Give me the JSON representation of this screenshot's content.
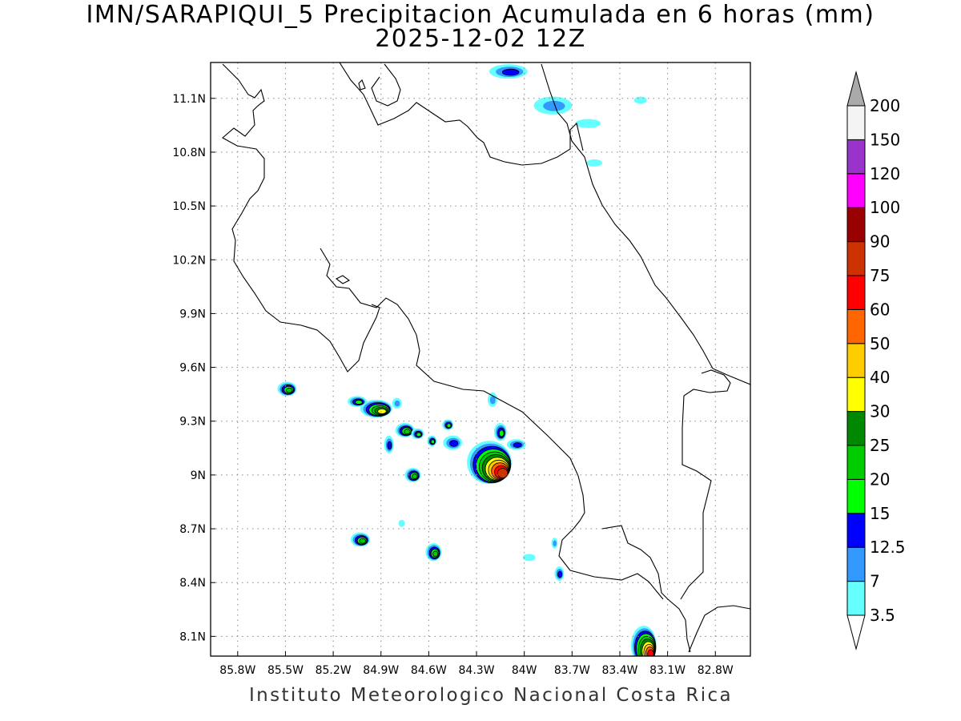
{
  "title": {
    "line1": "IMN/SARAPIQUI_5 Precipitacion Acumulada en 6 horas (mm)",
    "line2": "2025-12-02 12Z"
  },
  "footer": "Instituto Meteorologico Nacional Costa Rica",
  "map": {
    "lon_range": [
      -85.97,
      -82.58
    ],
    "lat_range": [
      7.99,
      11.3
    ],
    "lon_ticks": [
      {
        "value": -85.8,
        "label": "85.8W"
      },
      {
        "value": -85.5,
        "label": "85.5W"
      },
      {
        "value": -85.2,
        "label": "85.2W"
      },
      {
        "value": -84.9,
        "label": "84.9W"
      },
      {
        "value": -84.6,
        "label": "84.6W"
      },
      {
        "value": -84.3,
        "label": "84.3W"
      },
      {
        "value": -84.0,
        "label": "84W"
      },
      {
        "value": -83.7,
        "label": "83.7W"
      },
      {
        "value": -83.4,
        "label": "83.4W"
      },
      {
        "value": -83.1,
        "label": "83.1W"
      },
      {
        "value": -82.8,
        "label": "82.8W"
      }
    ],
    "lat_ticks": [
      {
        "value": 11.1,
        "label": "11.1N"
      },
      {
        "value": 10.8,
        "label": "10.8N"
      },
      {
        "value": 10.5,
        "label": "10.5N"
      },
      {
        "value": 10.2,
        "label": "10.2N"
      },
      {
        "value": 9.9,
        "label": "9.9N"
      },
      {
        "value": 9.6,
        "label": "9.6N"
      },
      {
        "value": 9.3,
        "label": "9.3N"
      },
      {
        "value": 9.0,
        "label": "9N"
      },
      {
        "value": 8.7,
        "label": "8.7N"
      },
      {
        "value": 8.4,
        "label": "8.4N"
      },
      {
        "value": 8.1,
        "label": "8.1N"
      }
    ],
    "grid": "dotted"
  },
  "colorbar": {
    "levels": [
      {
        "label": "3.5",
        "color": "#66ffff"
      },
      {
        "label": "7",
        "color": "#3399ff"
      },
      {
        "label": "12.5",
        "color": "#0000ff"
      },
      {
        "label": "15",
        "color": "#00ff00"
      },
      {
        "label": "20",
        "color": "#00cc00"
      },
      {
        "label": "25",
        "color": "#008800"
      },
      {
        "label": "30",
        "color": "#ffff00"
      },
      {
        "label": "40",
        "color": "#ffcc00"
      },
      {
        "label": "50",
        "color": "#ff6600"
      },
      {
        "label": "60",
        "color": "#ff0000"
      },
      {
        "label": "75",
        "color": "#cc3300"
      },
      {
        "label": "90",
        "color": "#990000"
      },
      {
        "label": "100",
        "color": "#ff00ff"
      },
      {
        "label": "120",
        "color": "#9933cc"
      },
      {
        "label": "150",
        "color": "#f4f4f4"
      },
      {
        "label": "200",
        "color": "#aaaaaa"
      }
    ],
    "over_color": "#aaaaaa",
    "under_color": "#ffffff"
  },
  "precip_cells": [
    {
      "lon": -84.22,
      "lat": 9.07,
      "rx": 0.14,
      "ry": 0.12,
      "max": 75
    },
    {
      "lon": -84.93,
      "lat": 9.37,
      "rx": 0.1,
      "ry": 0.05,
      "max": 35
    },
    {
      "lon": -83.25,
      "lat": 8.05,
      "rx": 0.08,
      "ry": 0.11,
      "max": 70
    },
    {
      "lon": -85.49,
      "lat": 9.48,
      "rx": 0.06,
      "ry": 0.04,
      "max": 22
    },
    {
      "lon": -85.05,
      "lat": 9.41,
      "rx": 0.06,
      "ry": 0.03,
      "max": 18
    },
    {
      "lon": -84.8,
      "lat": 9.4,
      "rx": 0.03,
      "ry": 0.03,
      "max": 12
    },
    {
      "lon": -84.75,
      "lat": 9.25,
      "rx": 0.06,
      "ry": 0.04,
      "max": 22
    },
    {
      "lon": -84.67,
      "lat": 9.23,
      "rx": 0.04,
      "ry": 0.03,
      "max": 18
    },
    {
      "lon": -84.58,
      "lat": 9.19,
      "rx": 0.03,
      "ry": 0.03,
      "max": 15
    },
    {
      "lon": -84.48,
      "lat": 9.28,
      "rx": 0.035,
      "ry": 0.03,
      "max": 18
    },
    {
      "lon": -84.45,
      "lat": 9.18,
      "rx": 0.06,
      "ry": 0.04,
      "max": 14
    },
    {
      "lon": -84.2,
      "lat": 9.42,
      "rx": 0.03,
      "ry": 0.04,
      "max": 12
    },
    {
      "lon": -84.15,
      "lat": 9.24,
      "rx": 0.04,
      "ry": 0.05,
      "max": 18
    },
    {
      "lon": -84.05,
      "lat": 9.17,
      "rx": 0.06,
      "ry": 0.03,
      "max": 14
    },
    {
      "lon": -84.85,
      "lat": 9.17,
      "rx": 0.03,
      "ry": 0.05,
      "max": 13
    },
    {
      "lon": -84.7,
      "lat": 9.0,
      "rx": 0.05,
      "ry": 0.04,
      "max": 20
    },
    {
      "lon": -85.03,
      "lat": 8.64,
      "rx": 0.06,
      "ry": 0.04,
      "max": 22
    },
    {
      "lon": -84.57,
      "lat": 8.57,
      "rx": 0.05,
      "ry": 0.05,
      "max": 22
    },
    {
      "lon": -84.1,
      "lat": 11.25,
      "rx": 0.12,
      "ry": 0.04,
      "max": 14
    },
    {
      "lon": -83.82,
      "lat": 11.06,
      "rx": 0.12,
      "ry": 0.05,
      "max": 12
    },
    {
      "lon": -83.6,
      "lat": 10.96,
      "rx": 0.08,
      "ry": 0.025,
      "max": 5
    },
    {
      "lon": -83.56,
      "lat": 10.74,
      "rx": 0.05,
      "ry": 0.02,
      "max": 5
    },
    {
      "lon": -83.27,
      "lat": 11.09,
      "rx": 0.04,
      "ry": 0.02,
      "max": 5
    },
    {
      "lon": -83.78,
      "lat": 8.45,
      "rx": 0.03,
      "ry": 0.04,
      "max": 13
    },
    {
      "lon": -83.81,
      "lat": 8.62,
      "rx": 0.02,
      "ry": 0.03,
      "max": 8
    },
    {
      "lon": -84.77,
      "lat": 8.73,
      "rx": 0.02,
      "ry": 0.02,
      "max": 5
    },
    {
      "lon": -83.97,
      "lat": 8.54,
      "rx": 0.04,
      "ry": 0.02,
      "max": 5
    }
  ]
}
